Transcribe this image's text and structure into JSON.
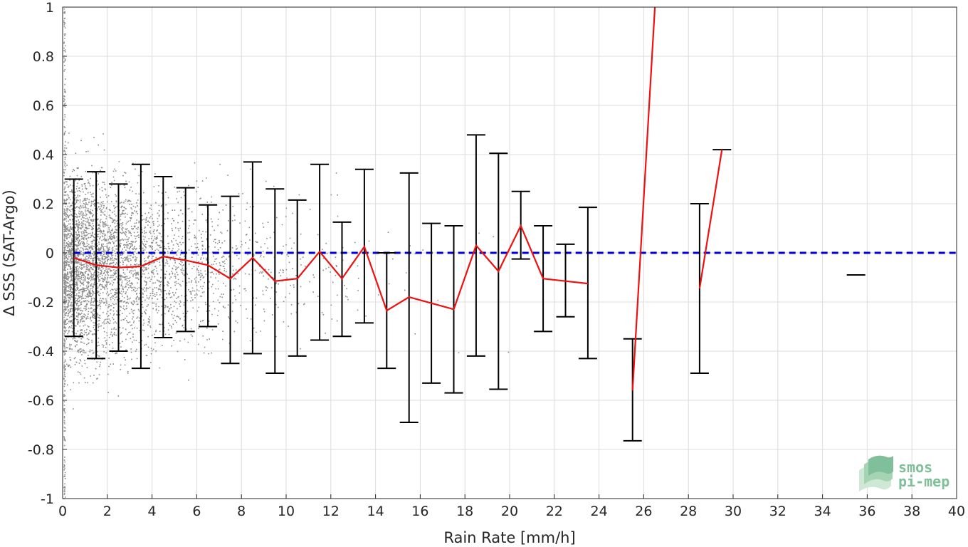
{
  "chart_data": {
    "type": "scatter",
    "title": "",
    "xlabel": "Rain Rate [mm/h]",
    "ylabel": "Δ SSS (SAT-Argo)",
    "xlim": [
      0,
      40
    ],
    "ylim": [
      -1,
      1
    ],
    "x_ticks": [
      0,
      2,
      4,
      6,
      8,
      10,
      12,
      14,
      16,
      18,
      20,
      22,
      24,
      26,
      28,
      30,
      32,
      34,
      36,
      38,
      40
    ],
    "y_ticks": [
      -1,
      -0.8,
      -0.6,
      -0.4,
      -0.2,
      0,
      0.2,
      0.4,
      0.6,
      0.8,
      1
    ],
    "y_tick_labels": [
      "-1",
      "-0.8",
      "-0.6",
      "-0.4",
      "-0.2",
      "0",
      "0.2",
      "0.4",
      "0.6",
      "0.8",
      "1"
    ],
    "grid": true,
    "reference_line": {
      "y": 0,
      "color": "#0000dd",
      "style": "dashed"
    },
    "scatter_color": "#8c8c8c",
    "scatter_note": "dense grey points, most concentrated near 0-4 mm/h",
    "mean_color": "#ee1111",
    "errorbar_color": "#000000",
    "errorbars": [
      {
        "x": 0.5,
        "mean": -0.02,
        "low": -0.34,
        "high": 0.3
      },
      {
        "x": 1.5,
        "mean": -0.05,
        "low": -0.43,
        "high": 0.33
      },
      {
        "x": 2.5,
        "mean": -0.06,
        "low": -0.4,
        "high": 0.28
      },
      {
        "x": 3.5,
        "mean": -0.055,
        "low": -0.47,
        "high": 0.36
      },
      {
        "x": 4.5,
        "mean": -0.015,
        "low": -0.345,
        "high": 0.31
      },
      {
        "x": 5.5,
        "mean": -0.03,
        "low": -0.32,
        "high": 0.265
      },
      {
        "x": 6.5,
        "mean": -0.05,
        "low": -0.3,
        "high": 0.195
      },
      {
        "x": 7.5,
        "mean": -0.105,
        "low": -0.45,
        "high": 0.23
      },
      {
        "x": 8.5,
        "mean": -0.02,
        "low": -0.41,
        "high": 0.37
      },
      {
        "x": 9.5,
        "mean": -0.115,
        "low": -0.49,
        "high": 0.26
      },
      {
        "x": 10.5,
        "mean": -0.105,
        "low": -0.42,
        "high": 0.215
      },
      {
        "x": 11.5,
        "mean": 0.005,
        "low": -0.355,
        "high": 0.36
      },
      {
        "x": 12.5,
        "mean": -0.105,
        "low": -0.34,
        "high": 0.125
      },
      {
        "x": 13.5,
        "mean": 0.025,
        "low": -0.285,
        "high": 0.34
      },
      {
        "x": 14.5,
        "mean": -0.235,
        "low": -0.47,
        "high": 0.0
      },
      {
        "x": 15.5,
        "mean": -0.18,
        "low": -0.69,
        "high": 0.325
      },
      {
        "x": 16.5,
        "mean": -0.205,
        "low": -0.53,
        "high": 0.12
      },
      {
        "x": 17.5,
        "mean": -0.23,
        "low": -0.57,
        "high": 0.11
      },
      {
        "x": 18.5,
        "mean": 0.03,
        "low": -0.42,
        "high": 0.48
      },
      {
        "x": 19.5,
        "mean": -0.075,
        "low": -0.555,
        "high": 0.405
      },
      {
        "x": 20.5,
        "mean": 0.11,
        "low": -0.025,
        "high": 0.25
      },
      {
        "x": 21.5,
        "mean": -0.105,
        "low": -0.32,
        "high": 0.11
      },
      {
        "x": 22.5,
        "mean": -0.115,
        "low": -0.26,
        "high": 0.035
      },
      {
        "x": 23.5,
        "mean": -0.125,
        "low": -0.43,
        "high": 0.185
      },
      {
        "x": 25.5,
        "mean": -0.56,
        "low": -0.765,
        "high": -0.35
      },
      {
        "x": 28.5,
        "mean": -0.145,
        "low": -0.49,
        "high": 0.2
      },
      {
        "x": 29.5,
        "mean": 0.42,
        "low": 0.42,
        "high": 0.42
      },
      {
        "x": 35.5,
        "mean": null,
        "low": -0.09,
        "high": -0.09
      }
    ],
    "mean_segments": [
      [
        [
          0.5,
          -0.02
        ],
        [
          1.5,
          -0.05
        ],
        [
          2.5,
          -0.06
        ],
        [
          3.5,
          -0.055
        ],
        [
          4.5,
          -0.015
        ],
        [
          5.5,
          -0.03
        ],
        [
          6.5,
          -0.05
        ],
        [
          7.5,
          -0.105
        ],
        [
          8.5,
          -0.02
        ],
        [
          9.5,
          -0.115
        ],
        [
          10.5,
          -0.105
        ],
        [
          11.5,
          0.005
        ],
        [
          12.5,
          -0.105
        ],
        [
          13.5,
          0.025
        ],
        [
          14.5,
          -0.235
        ],
        [
          15.5,
          -0.18
        ],
        [
          16.5,
          -0.205
        ],
        [
          17.5,
          -0.23
        ],
        [
          18.5,
          0.03
        ],
        [
          19.5,
          -0.075
        ],
        [
          20.5,
          0.11
        ],
        [
          21.5,
          -0.105
        ],
        [
          22.5,
          -0.115
        ],
        [
          23.5,
          -0.125
        ]
      ],
      [
        [
          25.5,
          -0.56
        ],
        [
          26.5,
          1.0
        ]
      ],
      [
        [
          28.5,
          -0.145
        ],
        [
          29.5,
          0.42
        ]
      ]
    ]
  },
  "watermark": {
    "line1": "smos",
    "line2": "pi-mep"
  }
}
